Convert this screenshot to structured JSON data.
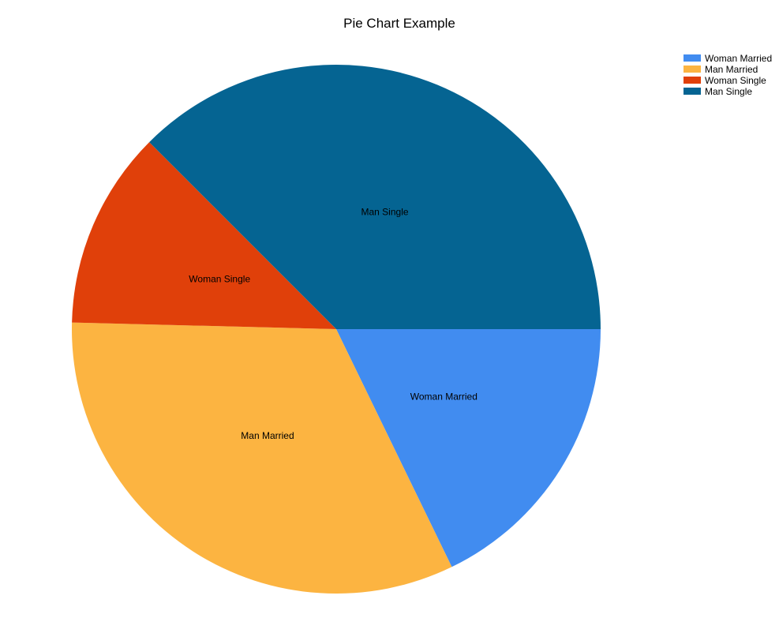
{
  "chart_data": {
    "type": "pie",
    "title": "Pie Chart Example",
    "categories": [
      "Woman Married",
      "Man Married",
      "Woman Single",
      "Man Single"
    ],
    "values": [
      17.8,
      32.6,
      12.1,
      37.5
    ],
    "colors": [
      "#418CF0",
      "#FCB441",
      "#E0400A",
      "#056492"
    ],
    "legend": "top-right",
    "start_angle_deg": 0,
    "direction": "clockwise"
  }
}
